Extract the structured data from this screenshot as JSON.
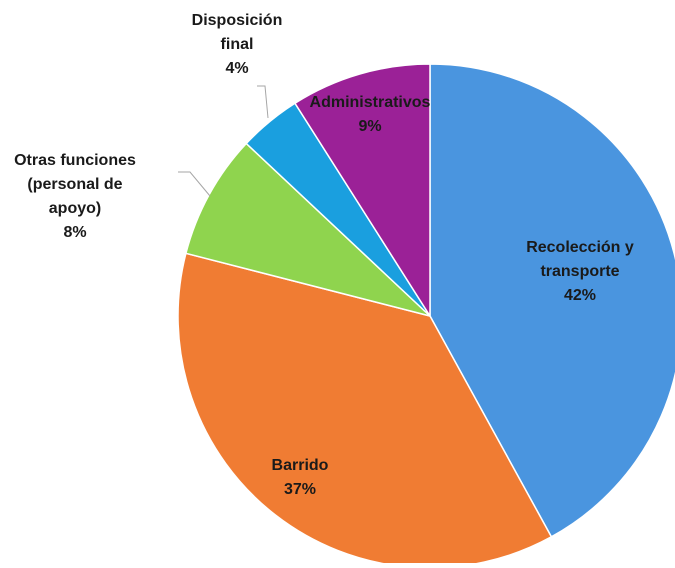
{
  "chart_data": {
    "type": "pie",
    "title": "",
    "slices": [
      {
        "label_lines": [
          "Recolección y",
          "transporte"
        ],
        "pct_label": "42%",
        "value": 42,
        "color": "#4a95df"
      },
      {
        "label_lines": [
          "Barrido"
        ],
        "pct_label": "37%",
        "value": 37,
        "color": "#f07c33"
      },
      {
        "label_lines": [
          "Otras funciones",
          "(personal de",
          "apoyo)"
        ],
        "pct_label": "8%",
        "value": 8,
        "color": "#8fd44e"
      },
      {
        "label_lines": [
          "Disposición",
          "final"
        ],
        "pct_label": "4%",
        "value": 4,
        "color": "#1a9fdf"
      },
      {
        "label_lines": [
          "Administrativos"
        ],
        "pct_label": "9%",
        "value": 9,
        "color": "#9b2197"
      }
    ],
    "legend": "none"
  }
}
